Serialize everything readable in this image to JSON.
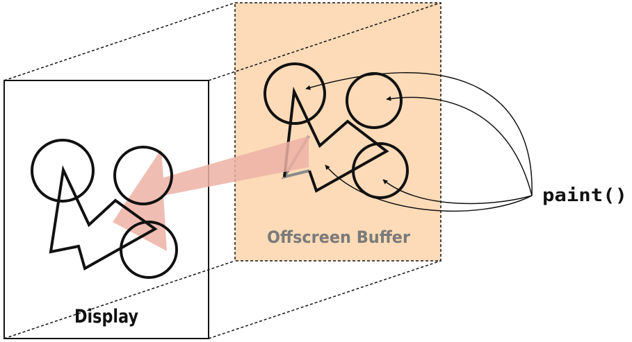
{
  "labels": {
    "display": "Display",
    "offscreen_buffer": "Offscreen Buffer",
    "paint": "paint()"
  },
  "colors": {
    "buffer_fill": "#fddbb8",
    "buffer_label": "#7a7a7a",
    "transfer_arrow": "#ecb1a5",
    "outline": "#111111",
    "hidden_edge": "#8a8a8a"
  }
}
